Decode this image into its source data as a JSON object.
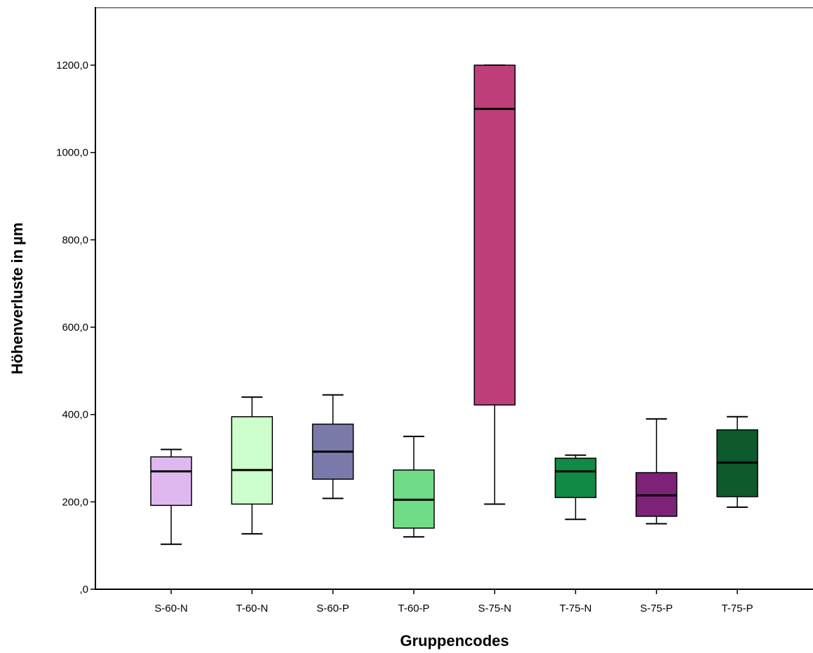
{
  "chart_data": {
    "type": "boxplot",
    "xlabel": "Gruppencodes",
    "ylabel": "Höhenverluste in µm",
    "ylim": [
      0,
      1330
    ],
    "yticks": [
      0,
      200,
      400,
      600,
      800,
      1000,
      1200
    ],
    "ytick_labels": [
      ",0",
      "200,0",
      "400,0",
      "600,0",
      "800,0",
      "1000,0",
      "1200,0"
    ],
    "grid": false,
    "categories": [
      "S-60-N",
      "T-60-N",
      "S-60-P",
      "T-60-P",
      "S-75-N",
      "T-75-N",
      "S-75-P",
      "T-75-P"
    ],
    "boxes": [
      {
        "name": "S-60-N",
        "min": 103,
        "q1": 192,
        "median": 270,
        "q3": 303,
        "max": 320,
        "color": "#e0b8f0"
      },
      {
        "name": "T-60-N",
        "min": 127,
        "q1": 195,
        "median": 273,
        "q3": 395,
        "max": 440,
        "color": "#ccffcc"
      },
      {
        "name": "S-60-P",
        "min": 208,
        "q1": 252,
        "median": 315,
        "q3": 378,
        "max": 445,
        "color": "#7a7aaa"
      },
      {
        "name": "T-60-P",
        "min": 120,
        "q1": 140,
        "median": 205,
        "q3": 273,
        "max": 350,
        "color": "#70dc88"
      },
      {
        "name": "S-75-N",
        "min": 195,
        "q1": 422,
        "median": 1100,
        "q3": 1200,
        "max": 1200,
        "color": "#bf3f7a"
      },
      {
        "name": "T-75-N",
        "min": 160,
        "q1": 210,
        "median": 270,
        "q3": 300,
        "max": 307,
        "color": "#108a44"
      },
      {
        "name": "S-75-P",
        "min": 150,
        "q1": 167,
        "median": 215,
        "q3": 267,
        "max": 390,
        "color": "#7e2278"
      },
      {
        "name": "T-75-P",
        "min": 188,
        "q1": 212,
        "median": 290,
        "q3": 365,
        "max": 395,
        "color": "#0e5a2c"
      }
    ]
  }
}
